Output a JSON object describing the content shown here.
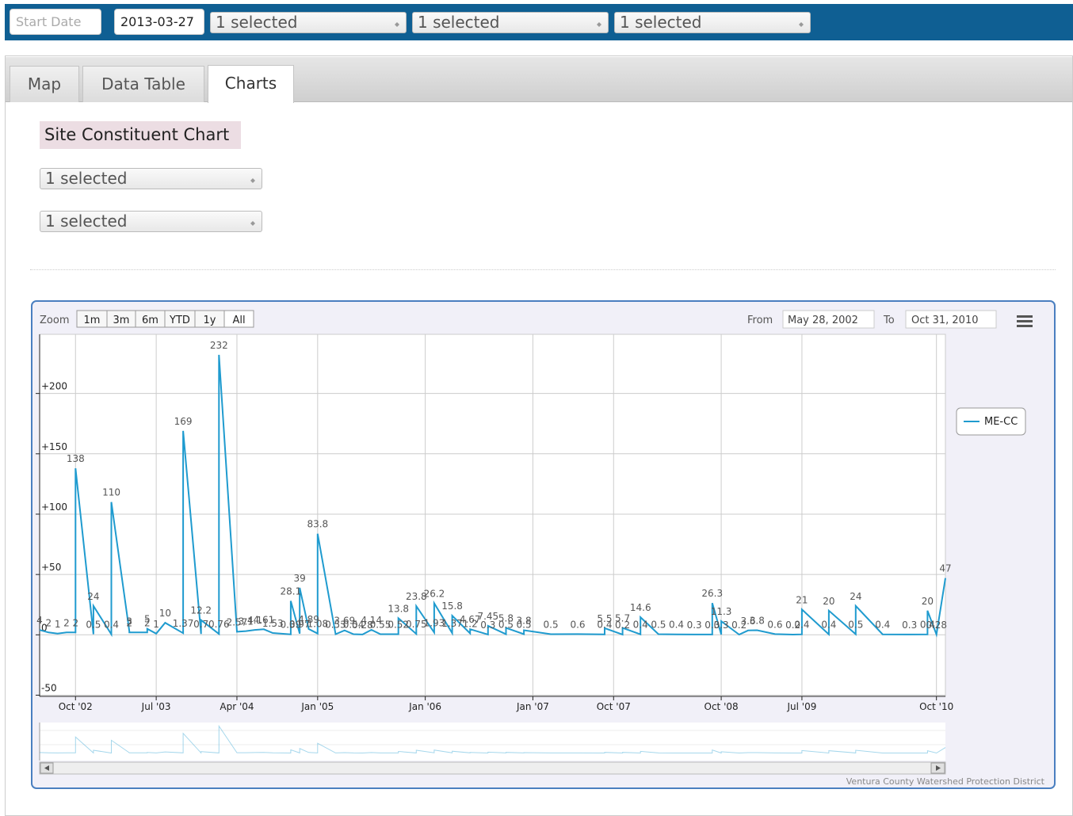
{
  "toolbar": {
    "start_date_placeholder": "Start Date",
    "end_date": "2013-03-27",
    "selects": [
      "1 selected",
      "1 selected",
      "1 selected"
    ]
  },
  "tabs": [
    "Map",
    "Data Table",
    "Charts"
  ],
  "panel": {
    "title": "Site Constituent Chart",
    "selects": [
      "1 selected",
      "1 selected"
    ]
  },
  "range_selector": {
    "zoom_label": "Zoom",
    "buttons": [
      "1m",
      "3m",
      "6m",
      "YTD",
      "1y",
      "All"
    ],
    "from_label": "From",
    "from": "May 28, 2002",
    "to_label": "To",
    "to": "Oct 31, 2010"
  },
  "chart_data": {
    "type": "line",
    "x": [
      "2002-06",
      "2002-07",
      "2002-08",
      "2002-09",
      "2002-10",
      "2002-10",
      "2002-12",
      "2002-12",
      "2003-02",
      "2003-02",
      "2003-04",
      "2003-04",
      "2003-06",
      "2003-06",
      "2003-07",
      "2003-08",
      "2003-10",
      "2003-10",
      "2003-12",
      "2003-12",
      "2004-02",
      "2004-02",
      "2004-04",
      "2004-05",
      "2004-06",
      "2004-07",
      "2004-08",
      "2004-10",
      "2004-10",
      "2004-11",
      "2004-11",
      "2004-12",
      "2005-01",
      "2005-01",
      "2005-03",
      "2005-04",
      "2005-05",
      "2005-06",
      "2005-07",
      "2005-08",
      "2005-10",
      "2005-10",
      "2005-12",
      "2005-12",
      "2006-02",
      "2006-02",
      "2006-04",
      "2006-04",
      "2006-06",
      "2006-06",
      "2006-08",
      "2006-08",
      "2006-10",
      "2006-10",
      "2006-12",
      "2006-12",
      "2007-03",
      "2007-06",
      "2007-09",
      "2007-09",
      "2007-11",
      "2007-11",
      "2008-01",
      "2008-01",
      "2008-03",
      "2008-05",
      "2008-07",
      "2008-09",
      "2008-09",
      "2008-10",
      "2008-10",
      "2008-12",
      "2009-01",
      "2009-02",
      "2009-04",
      "2009-06",
      "2009-07",
      "2009-07",
      "2009-10",
      "2009-10",
      "2010-01",
      "2010-01",
      "2010-04",
      "2010-07",
      "2010-09",
      "2010-09",
      "2010-10",
      "2010-11"
    ],
    "series": [
      {
        "name": "ME-CC",
        "color": "#1f9bcf",
        "values": [
          4,
          2,
          1,
          2,
          2,
          138,
          0.5,
          24,
          0.4,
          110,
          3,
          2,
          2,
          5,
          1,
          10,
          1.37,
          169,
          0.7,
          12.2,
          0.76,
          232,
          2.57,
          3.1,
          4.1,
          4.61,
          1.53,
          0.39,
          28.1,
          0.97,
          39,
          4.89,
          1.08,
          83.8,
          0.53,
          3.69,
          0.54,
          0.28,
          4.14,
          0.55,
          0.52,
          13.8,
          0.75,
          23.8,
          1.93,
          26.2,
          1.37,
          15.8,
          1.2,
          4.67,
          0.3,
          7.45,
          0.5,
          5.8,
          0.5,
          3.8,
          0.5,
          0.6,
          0.4,
          5.5,
          0.2,
          5.7,
          0.4,
          14.6,
          0.5,
          0.4,
          0.3,
          0.3,
          26.3,
          0.3,
          11.3,
          0.2,
          3.6,
          3.8,
          0.6,
          0.2,
          0.4,
          21,
          0.4,
          20,
          0.5,
          24,
          0.4,
          0.3,
          0.4,
          20,
          0.28,
          47
        ]
      }
    ],
    "xlim": [
      "2002-06",
      "2010-11"
    ],
    "xticks": [
      {
        "value": "2002-10",
        "label": "Oct '02"
      },
      {
        "value": "2003-07",
        "label": "Jul '03"
      },
      {
        "value": "2004-04",
        "label": "Apr '04"
      },
      {
        "value": "2005-01",
        "label": "Jan '05"
      },
      {
        "value": "2006-01",
        "label": "Jan '06"
      },
      {
        "value": "2007-01",
        "label": "Jan '07"
      },
      {
        "value": "2007-10",
        "label": "Oct '07"
      },
      {
        "value": "2008-10",
        "label": "Oct '08"
      },
      {
        "value": "2009-07",
        "label": "Jul '09"
      },
      {
        "value": "2010-10",
        "label": "Oct '10"
      }
    ],
    "ylim": [
      -51,
      249
    ],
    "yticks": [
      {
        "value": -50,
        "label": "-50"
      },
      0,
      {
        "value": 50,
        "label": "+50"
      },
      {
        "value": 100,
        "label": "+100"
      },
      {
        "value": 150,
        "label": "+150"
      },
      {
        "value": 200,
        "label": "+200"
      }
    ],
    "grid": true,
    "credits": "Ventura County Watershed Protection District"
  }
}
